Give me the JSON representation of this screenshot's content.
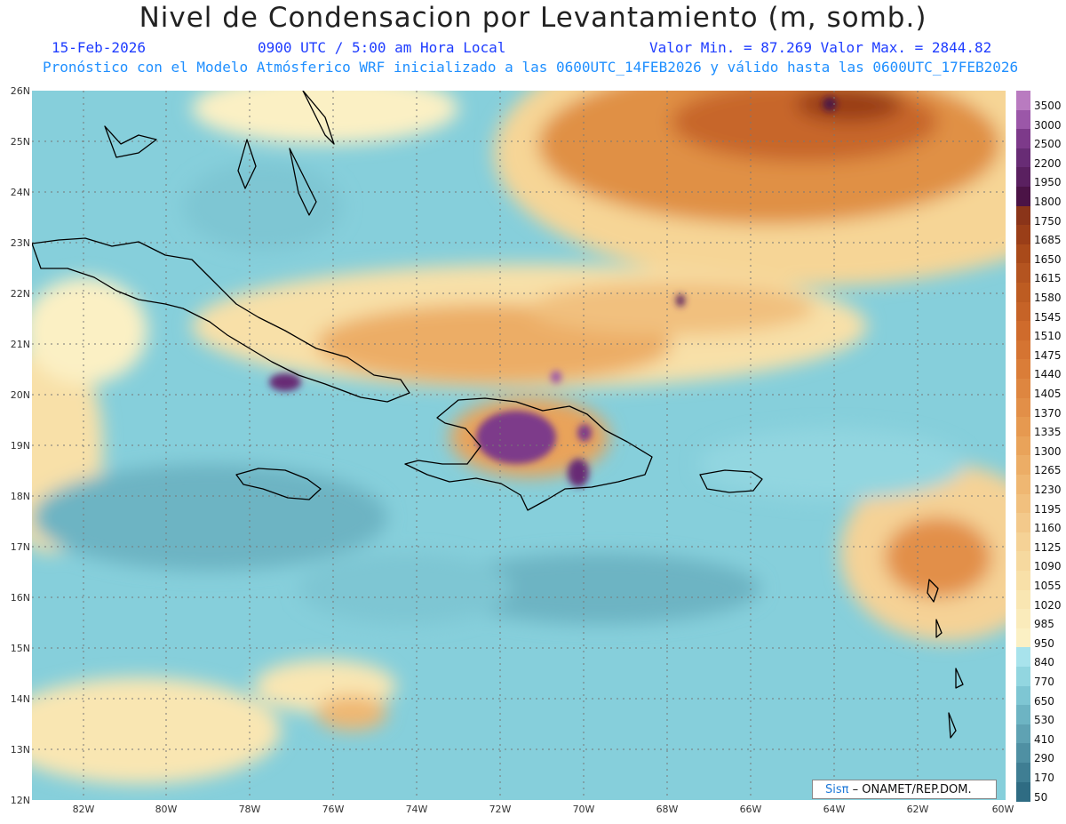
{
  "header": {
    "title": "Nivel de Condensacion por Levantamiento (m, somb.)",
    "date": "15-Feb-2026",
    "time": "0900 UTC / 5:00 am Hora Local",
    "stats": "Valor Min. = 87.269  Valor Max. = 2844.82",
    "forecast": "Pronóstico con el Modelo Atmósferico WRF inicializado a las 0600UTC_14FEB2026 y válido hasta las  0600UTC_17FEB2026"
  },
  "axes": {
    "lat_labels": [
      "26N",
      "25N",
      "24N",
      "23N",
      "22N",
      "21N",
      "20N",
      "19N",
      "18N",
      "17N",
      "16N",
      "15N",
      "14N",
      "13N",
      "12N"
    ],
    "lon_labels": [
      "82W",
      "80W",
      "78W",
      "76W",
      "74W",
      "72W",
      "70W",
      "68W",
      "66W",
      "64W",
      "62W",
      "60W"
    ]
  },
  "legend": {
    "labels": [
      "3500",
      "3000",
      "2500",
      "2200",
      "1950",
      "1800",
      "1750",
      "1685",
      "1650",
      "1615",
      "1580",
      "1545",
      "1510",
      "1475",
      "1440",
      "1405",
      "1370",
      "1335",
      "1300",
      "1265",
      "1230",
      "1195",
      "1160",
      "1125",
      "1090",
      "1055",
      "1020",
      "985",
      "950",
      "840",
      "770",
      "650",
      "530",
      "410",
      "290",
      "170",
      "50"
    ],
    "colors": [
      "#b97bc0",
      "#9b57a8",
      "#7d3a8a",
      "#682c75",
      "#5a2060",
      "#4b1346",
      "#8a3419",
      "#9a3e18",
      "#a94a1a",
      "#b45420",
      "#bd5c22",
      "#c66327",
      "#cf6b2c",
      "#d57432",
      "#da7d38",
      "#de8640",
      "#e28f48",
      "#e69950",
      "#e9a35a",
      "#ecad66",
      "#efb772",
      "#f1c07e",
      "#f3c98b",
      "#f5d296",
      "#f6d99f",
      "#f8e0a8",
      "#f9e6b2",
      "#faebbb",
      "#fbf0c4",
      "#a8e3ec",
      "#92d6e0",
      "#7ec6d3",
      "#6db4c3",
      "#5fa2b3",
      "#4f90a3",
      "#3f7e93",
      "#2f6c83"
    ]
  },
  "credit": {
    "logo": "Sisπ",
    "text": " – ONAMET/REP.DOM."
  }
}
